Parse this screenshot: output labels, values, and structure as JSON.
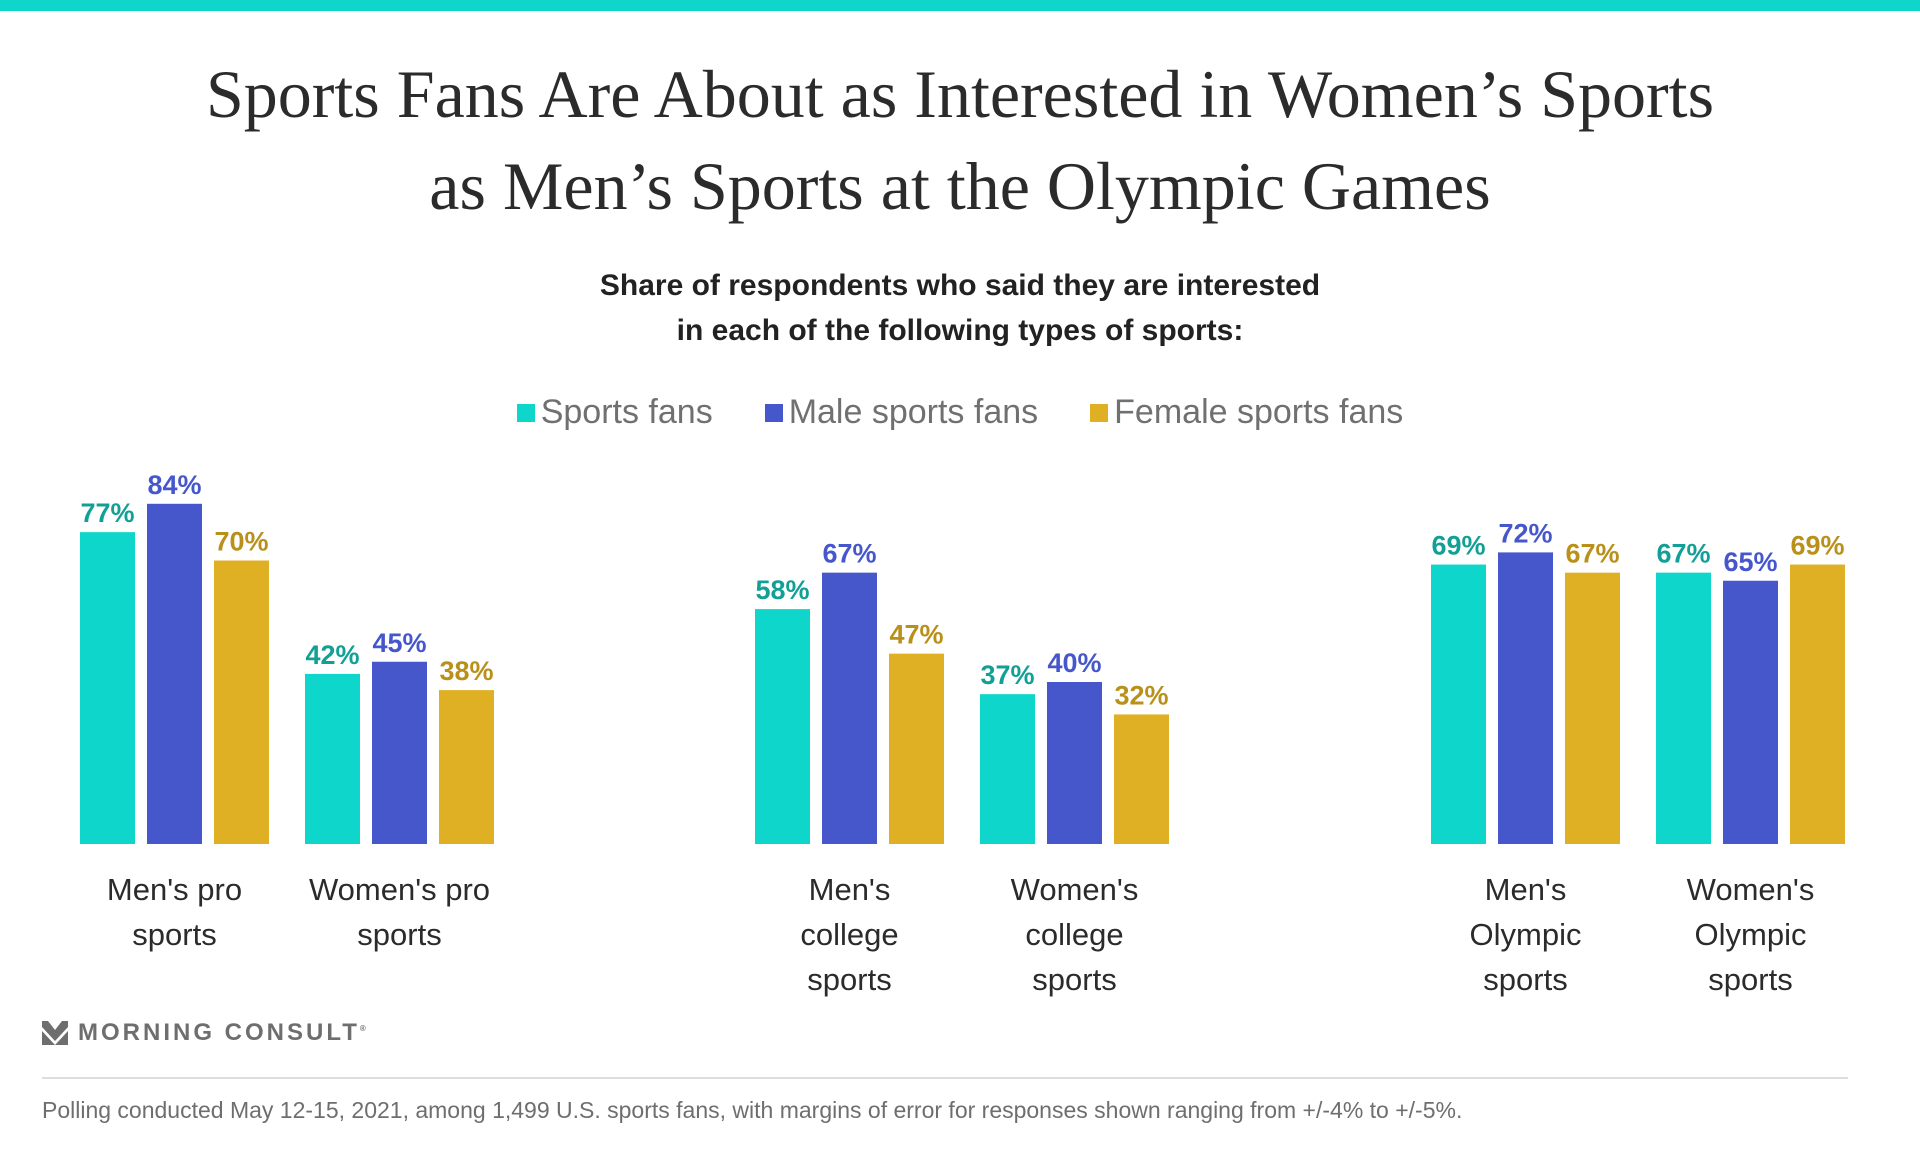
{
  "header": {
    "title_line1": "Sports Fans Are About as Interested in Women’s Sports",
    "title_line2": "as Men’s Sports at the Olympic Games",
    "accent_color": "#0fd6cb"
  },
  "legend": [
    {
      "label": "Sports fans",
      "color": "#0fd6cb"
    },
    {
      "label": "Male sports fans",
      "color": "#4657cc"
    },
    {
      "label": "Female sports fans",
      "color": "#e0b024"
    }
  ],
  "chart_data": {
    "type": "bar",
    "title": "Share of respondents who said they are interested in each of the following types of sports:",
    "subtitle_line1": "Share of respondents who said they are interested",
    "subtitle_line2": "in each of the following types of sports:",
    "xlabel": "",
    "ylabel": "",
    "ylim": [
      0,
      100
    ],
    "grid": false,
    "legend_position": "top-center",
    "categories": [
      [
        "Men's pro",
        "sports"
      ],
      [
        "Women's pro",
        "sports"
      ],
      [
        "Men's",
        "college",
        "sports"
      ],
      [
        "Women's",
        "college",
        "sports"
      ],
      [
        "Men's",
        "Olympic",
        "sports"
      ],
      [
        "Women's",
        "Olympic",
        "sports"
      ]
    ],
    "series": [
      {
        "name": "Sports fans",
        "color": "#0fd6cb",
        "label_color": "#12a096",
        "values": [
          77,
          42,
          58,
          37,
          69,
          67
        ]
      },
      {
        "name": "Male sports fans",
        "color": "#4657cc",
        "label_color": "#4657cc",
        "values": [
          84,
          45,
          67,
          40,
          72,
          65
        ]
      },
      {
        "name": "Female sports fans",
        "color": "#e0b024",
        "label_color": "#b8901a",
        "values": [
          70,
          38,
          47,
          32,
          67,
          69
        ]
      }
    ],
    "value_suffix": "%"
  },
  "footer": {
    "logo_text": "MORNING CONSULT",
    "logo_mark": "®",
    "note": "Polling conducted May 12-15, 2021, among 1,499 U.S. sports fans, with margins of error for responses shown ranging from +/-4% to +/-5%."
  }
}
